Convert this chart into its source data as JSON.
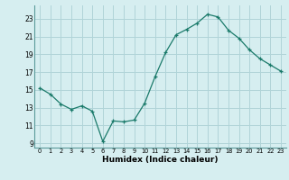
{
  "x": [
    0,
    1,
    2,
    3,
    4,
    5,
    6,
    7,
    8,
    9,
    10,
    11,
    12,
    13,
    14,
    15,
    16,
    17,
    18,
    19,
    20,
    21,
    22,
    23
  ],
  "y": [
    15.2,
    14.5,
    13.4,
    12.8,
    13.2,
    12.6,
    9.2,
    11.5,
    11.4,
    11.6,
    13.5,
    16.5,
    19.2,
    21.2,
    21.8,
    22.5,
    23.5,
    23.2,
    21.7,
    20.8,
    19.5,
    18.5,
    17.8,
    17.1
  ],
  "xlim": [
    -0.5,
    23.5
  ],
  "ylim": [
    8.5,
    24.5
  ],
  "yticks": [
    9,
    11,
    13,
    15,
    17,
    19,
    21,
    23
  ],
  "xticks": [
    0,
    1,
    2,
    3,
    4,
    5,
    6,
    7,
    8,
    9,
    10,
    11,
    12,
    13,
    14,
    15,
    16,
    17,
    18,
    19,
    20,
    21,
    22,
    23
  ],
  "xlabel": "Humidex (Indice chaleur)",
  "line_color": "#1a7a6a",
  "marker": "+",
  "marker_color": "#1a7a6a",
  "bg_color": "#d6eef0",
  "grid_color": "#b0d4d8",
  "spine_color": "#5a9a9a"
}
